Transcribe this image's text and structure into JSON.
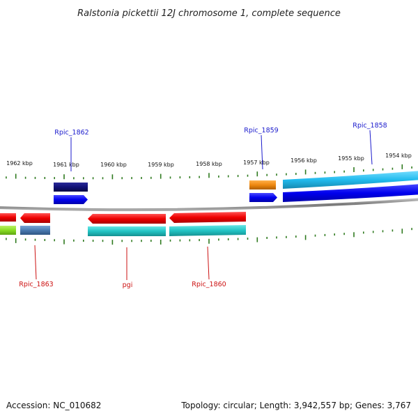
{
  "title": "Ralstonia pickettii 12J chromosome 1, complete sequence",
  "footer": {
    "accession": "Accession: NC_010682",
    "summary": "Topology: circular; Length: 3,942,557 bp; Genes: 3,767"
  },
  "ticks": [
    "1962 kbp",
    "1961 kbp",
    "1960 kbp",
    "1959 kbp",
    "1958 kbp",
    "1957 kbp",
    "1956 kbp",
    "1955 kbp",
    "1954 kbp"
  ],
  "gene_labels_top": [
    {
      "name": "Rpic_1862",
      "color": "#1a1acc"
    },
    {
      "name": "Rpic_1859",
      "color": "#1a1acc"
    },
    {
      "name": "Rpic_1858",
      "color": "#1a1acc"
    }
  ],
  "gene_labels_bottom": [
    {
      "name": "Rpic_1863",
      "color": "#cc1111"
    },
    {
      "name": "pgi",
      "color": "#cc1111"
    },
    {
      "name": "Rpic_1860",
      "color": "#cc1111"
    }
  ],
  "colors": {
    "backbone": "#8a8a8a",
    "tick": "#2f7a1f",
    "forward_gene": "#1010ee",
    "reverse_gene": "#ee1111",
    "cds_cyan": "#22c4c4",
    "cds_sky": "#22bbee",
    "cds_navy": "#111177",
    "cds_orange": "#ee8811",
    "cds_steel": "#4a7ab0",
    "cds_lime": "#88dd22"
  }
}
